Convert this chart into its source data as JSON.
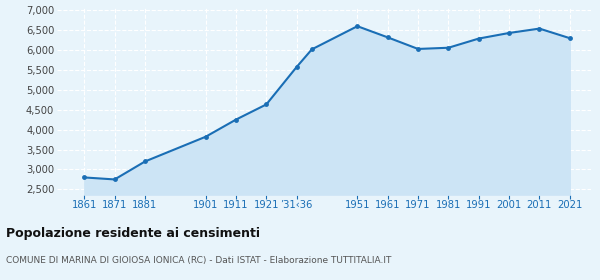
{
  "years": [
    1861,
    1871,
    1881,
    1901,
    1911,
    1921,
    1931,
    1936,
    1951,
    1961,
    1971,
    1981,
    1991,
    2001,
    2011,
    2021
  ],
  "population": [
    2800,
    2750,
    3200,
    3820,
    4250,
    4630,
    5570,
    6010,
    6590,
    6310,
    6020,
    6050,
    6280,
    6420,
    6530,
    6290
  ],
  "line_color": "#1a6eb5",
  "fill_color": "#cce4f5",
  "marker_color": "#1a6eb5",
  "bg_color": "#e8f4fb",
  "plot_bg_color": "#e8f4fb",
  "grid_color": "#ffffff",
  "ylabel_ticks": [
    2500,
    3000,
    3500,
    4000,
    4500,
    5000,
    5500,
    6000,
    6500,
    7000
  ],
  "ylim": [
    2370,
    7050
  ],
  "xlim_left": 1852,
  "xlim_right": 2028,
  "title": "Popolazione residente ai censimenti",
  "subtitle": "COMUNE DI MARINA DI GIOIOSA IONICA (RC) - Dati ISTAT - Elaborazione TUTTITALIA.IT",
  "x_positions": [
    1861,
    1871,
    1881,
    1901,
    1911,
    1921,
    1931,
    1951,
    1961,
    1971,
    1981,
    1991,
    2001,
    2011,
    2021
  ],
  "x_labels": [
    "1861",
    "1871",
    "1881",
    "1901",
    "1911",
    "1921",
    "’31‹36",
    "1951",
    "1961",
    "1971",
    "1981",
    "1991",
    "2001",
    "2011",
    "2021"
  ]
}
